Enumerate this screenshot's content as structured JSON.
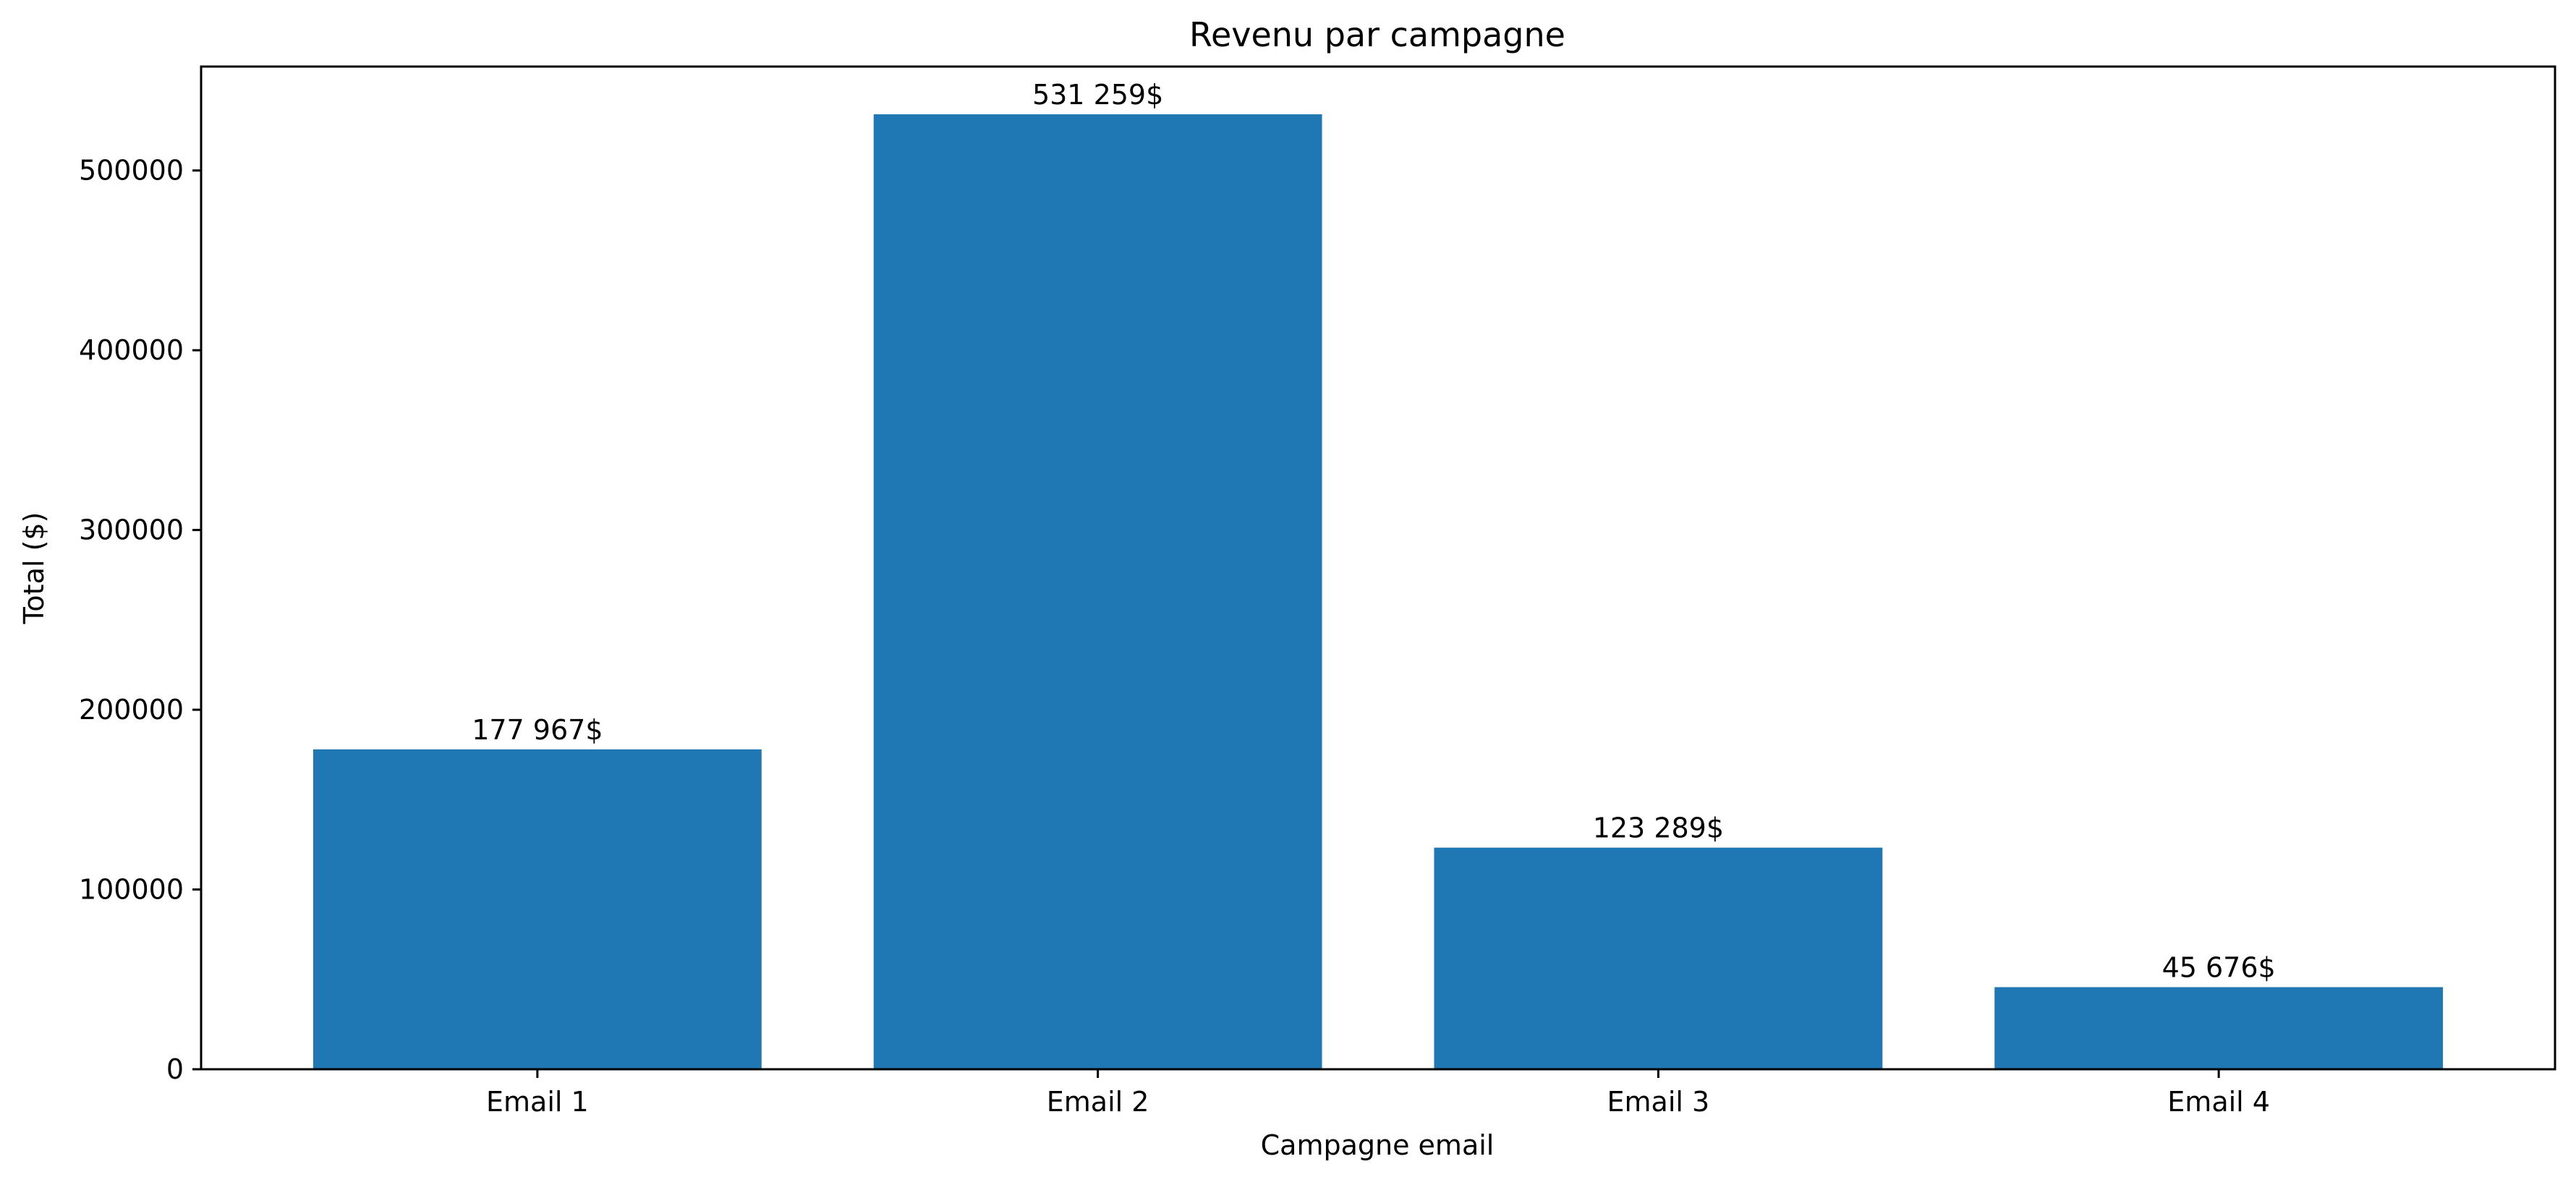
{
  "chart_data": {
    "type": "bar",
    "title": "Revenu par campagne",
    "xlabel": "Campagne email",
    "ylabel": "Total ($)",
    "categories": [
      "Email 1",
      "Email 2",
      "Email 3",
      "Email 4"
    ],
    "values": [
      177967,
      531259,
      123289,
      45676
    ],
    "data_labels": [
      "177 967$",
      "531 259$",
      "123 289$",
      "45 676$"
    ],
    "ylim": [
      0,
      557822
    ],
    "yticks": [
      0,
      100000,
      200000,
      300000,
      400000,
      500000
    ],
    "ytick_labels": [
      "0",
      "100000",
      "200000",
      "300000",
      "400000",
      "500000"
    ],
    "bar_color": "#1f77b4",
    "grid": false,
    "legend": "none"
  }
}
